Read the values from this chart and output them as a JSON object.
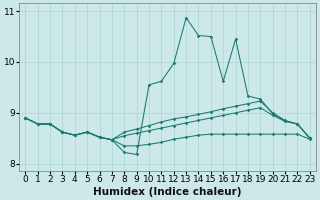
{
  "xlabel": "Humidex (Indice chaleur)",
  "background_color": "#cce8e8",
  "line_color": "#1a7a6e",
  "xlim": [
    -0.5,
    23.5
  ],
  "ylim": [
    7.85,
    11.15
  ],
  "yticks": [
    8,
    9,
    10,
    11
  ],
  "xticks": [
    0,
    1,
    2,
    3,
    4,
    5,
    6,
    7,
    8,
    9,
    10,
    11,
    12,
    13,
    14,
    15,
    16,
    17,
    18,
    19,
    20,
    21,
    22,
    23
  ],
  "series": [
    {
      "x": [
        0,
        1,
        2,
        3,
        4,
        5,
        6,
        7,
        8,
        9,
        10,
        11,
        12,
        13,
        14,
        15,
        16,
        17,
        18,
        19,
        20,
        21,
        22,
        23
      ],
      "y": [
        8.9,
        8.78,
        8.78,
        8.62,
        8.56,
        8.62,
        8.52,
        8.47,
        8.22,
        8.18,
        9.55,
        9.62,
        9.97,
        10.87,
        10.52,
        10.5,
        9.62,
        10.45,
        9.33,
        9.27,
        8.98,
        8.84,
        8.78,
        8.5
      ]
    },
    {
      "x": [
        0,
        1,
        2,
        3,
        4,
        5,
        6,
        7,
        8,
        9,
        10,
        11,
        12,
        13,
        14,
        15,
        16,
        17,
        18,
        19,
        20,
        21,
        22,
        23
      ],
      "y": [
        8.9,
        8.78,
        8.78,
        8.62,
        8.56,
        8.62,
        8.52,
        8.47,
        8.62,
        8.68,
        8.75,
        8.82,
        8.88,
        8.92,
        8.97,
        9.02,
        9.08,
        9.13,
        9.18,
        9.23,
        9.0,
        8.85,
        8.78,
        8.5
      ]
    },
    {
      "x": [
        0,
        1,
        2,
        3,
        4,
        5,
        6,
        7,
        8,
        9,
        10,
        11,
        12,
        13,
        14,
        15,
        16,
        17,
        18,
        19,
        20,
        21,
        22,
        23
      ],
      "y": [
        8.9,
        8.78,
        8.78,
        8.62,
        8.56,
        8.62,
        8.52,
        8.47,
        8.55,
        8.6,
        8.65,
        8.7,
        8.75,
        8.8,
        8.85,
        8.9,
        8.95,
        9.0,
        9.05,
        9.1,
        8.95,
        8.83,
        8.78,
        8.5
      ]
    },
    {
      "x": [
        0,
        1,
        2,
        3,
        4,
        5,
        6,
        7,
        8,
        9,
        10,
        11,
        12,
        13,
        14,
        15,
        16,
        17,
        18,
        19,
        20,
        21,
        22,
        23
      ],
      "y": [
        8.9,
        8.78,
        8.78,
        8.62,
        8.56,
        8.62,
        8.52,
        8.47,
        8.35,
        8.35,
        8.38,
        8.42,
        8.48,
        8.52,
        8.56,
        8.58,
        8.58,
        8.58,
        8.58,
        8.58,
        8.58,
        8.58,
        8.58,
        8.48
      ]
    }
  ],
  "grid_color": "#aad4d4",
  "tick_fontsize": 6.5,
  "xlabel_fontsize": 7.5
}
